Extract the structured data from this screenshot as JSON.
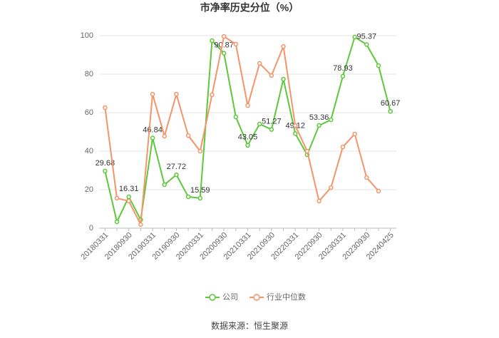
{
  "chart_data": {
    "type": "line",
    "title": "市净率历史分位（%）",
    "source": "数据来源：恒生聚源",
    "categories": [
      "20180331",
      null,
      "20180930",
      null,
      "20190331",
      null,
      "20190930",
      null,
      "20200331",
      null,
      "20200930",
      null,
      "20210331",
      null,
      "20210930",
      null,
      "20220331",
      null,
      "20220930",
      null,
      "20230331",
      null,
      "20230930",
      null,
      "20240425"
    ],
    "series": [
      {
        "name": "公司",
        "color": "#5cc83a",
        "values": [
          29.68,
          3.3,
          16.31,
          4.4,
          46.84,
          22.6,
          27.72,
          16.3,
          15.59,
          97.4,
          90.87,
          57.8,
          43.05,
          54.1,
          51.27,
          77.4,
          49.12,
          38.1,
          53.36,
          56.3,
          78.93,
          99.3,
          95.37,
          84.4,
          60.67
        ],
        "value_labels": [
          "29.68",
          null,
          "16.31",
          null,
          "46.84",
          null,
          "27.72",
          null,
          "15.59",
          null,
          "90.87",
          null,
          "43.05",
          null,
          "51.27",
          null,
          "49.12",
          null,
          "53.36",
          null,
          "78.93",
          null,
          "95.37",
          null,
          "60.67"
        ]
      },
      {
        "name": "行业中位数",
        "color": "#f4946a",
        "values": [
          62.6,
          15.6,
          14.1,
          1.9,
          69.6,
          47.8,
          69.6,
          48.1,
          40,
          69.3,
          99.6,
          95.6,
          63.7,
          85.6,
          79.3,
          94.4,
          53.3,
          40,
          14.1,
          21.1,
          42.2,
          48.9,
          26.3,
          19.3,
          null
        ]
      }
    ],
    "ylim": [
      0,
      100
    ],
    "yticks": [
      0,
      20,
      40,
      60,
      80,
      100
    ],
    "grid": true
  }
}
